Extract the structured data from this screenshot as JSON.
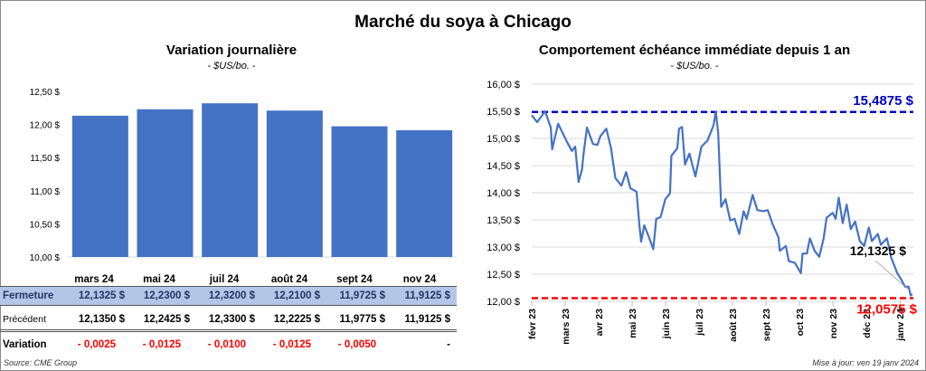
{
  "title": "Marché du soya à Chicago",
  "left": {
    "title": "Variation journalière",
    "unit": "- $US/bo. -"
  },
  "right": {
    "title": "Comportement  échéance immédiate depuis 1 an",
    "unit": "- $US/bo. -"
  },
  "table": {
    "months": [
      "mars 24",
      "mai 24",
      "juil 24",
      "août 24",
      "sept 24",
      "nov 24"
    ],
    "rows": [
      {
        "label": "Fermeture",
        "values": [
          "12,1325  $",
          "12,2300  $",
          "12,3200  $",
          "12,2100  $",
          "11,9725  $",
          "11,9125  $"
        ]
      },
      {
        "label": "Précédent",
        "values": [
          "12,1350  $",
          "12,2425  $",
          "12,3300  $",
          "12,2225  $",
          "11,9775  $",
          "11,9125  $"
        ]
      },
      {
        "label": "Variation",
        "values": [
          "- 0,0025",
          "- 0,0125",
          "- 0,0100",
          "- 0,0125",
          "- 0,0050",
          "-"
        ]
      }
    ]
  },
  "source": "Source: CME Group",
  "update": "Mise à jour: ven 19 janv 2024",
  "colors": {
    "bar": "#4472c4",
    "line": "#4472c4",
    "max": "#0000c0",
    "min": "#ff0000",
    "fermeture_bg": "#b4c6e7",
    "fermeture_text": "#1f3864",
    "neg": "#ff0000"
  },
  "chart_data": [
    {
      "type": "bar",
      "title": "Variation journalière",
      "ylabel": "$US/bo.",
      "categories": [
        "mars 24",
        "mai 24",
        "juil 24",
        "août 24",
        "sept 24",
        "nov 24"
      ],
      "values": [
        12.1325,
        12.23,
        12.32,
        12.21,
        11.9725,
        11.9125
      ],
      "ylim": [
        10,
        12.5
      ],
      "yticks": [
        "10,00 $",
        "10,50 $",
        "11,00 $",
        "11,50 $",
        "12,00 $",
        "12,50 $"
      ],
      "ytick_values": [
        10,
        10.5,
        11,
        11.5,
        12,
        12.5
      ]
    },
    {
      "type": "line",
      "title": "Comportement  échéance immédiate depuis 1 an",
      "ylim": [
        12,
        16
      ],
      "yticks": [
        "12,00 $",
        "12,50 $",
        "13,00 $",
        "13,50 $",
        "14,00 $",
        "14,50 $",
        "15,00 $",
        "15,50 $",
        "16,00 $"
      ],
      "ytick_values": [
        12,
        12.5,
        13,
        13.5,
        14,
        14.5,
        15,
        15.5,
        16
      ],
      "xticks": [
        "févr 23",
        "mars 23",
        "avr 23",
        "mai 23",
        "juin 23",
        "juil 23",
        "août 23",
        "sept 23",
        "oct 23",
        "nov 23",
        "déc 23",
        "janv 24"
      ],
      "x_months": [
        0,
        0.16,
        0.4,
        0.57,
        0.61,
        0.79,
        1.06,
        1.2,
        1.3,
        1.4,
        1.5,
        1.56,
        1.65,
        1.83,
        1.96,
        2.05,
        2.23,
        2.37,
        2.5,
        2.68,
        2.82,
        2.95,
        3.13,
        3.22,
        3.27,
        3.36,
        3.49,
        3.63,
        3.72,
        3.85,
        3.99,
        4.13,
        4.17,
        4.35,
        4.4,
        4.49,
        4.58,
        4.71,
        4.89,
        5.07,
        5.25,
        5.43,
        5.5,
        5.57,
        5.66,
        5.79,
        5.93,
        6.06,
        6.2,
        6.33,
        6.42,
        6.6,
        6.74,
        6.92,
        7.05,
        7.19,
        7.37,
        7.41,
        7.59,
        7.68,
        7.86,
        8.04,
        8.09,
        8.22,
        8.31,
        8.45,
        8.59,
        8.72,
        8.81,
        8.99,
        9.08,
        9.17,
        9.29,
        9.41,
        9.53,
        9.66,
        9.8,
        9.93,
        10.07,
        10.16,
        10.34,
        10.43,
        10.61,
        10.74,
        10.92,
        11.06,
        11.15,
        11.26,
        11.32,
        11.37
      ],
      "values": [
        15.43,
        15.3,
        15.5,
        15.2,
        14.8,
        15.27,
        14.93,
        14.77,
        14.85,
        14.2,
        14.42,
        14.77,
        15.2,
        14.9,
        14.88,
        15.04,
        15.18,
        14.82,
        14.27,
        14.13,
        14.38,
        14.08,
        14.02,
        13.38,
        13.1,
        13.4,
        13.2,
        12.96,
        13.52,
        13.55,
        13.88,
        13.99,
        14.68,
        14.82,
        15.18,
        15.21,
        14.52,
        14.72,
        14.3,
        14.85,
        14.96,
        15.24,
        15.49,
        15.1,
        13.74,
        13.88,
        13.49,
        13.52,
        13.24,
        13.66,
        13.52,
        13.96,
        13.68,
        13.66,
        13.68,
        13.43,
        13.18,
        12.93,
        13.02,
        12.74,
        12.71,
        12.52,
        12.88,
        12.88,
        13.16,
        12.93,
        12.82,
        13.16,
        13.54,
        13.63,
        13.52,
        13.91,
        13.44,
        13.78,
        13.33,
        13.47,
        13.11,
        13.02,
        13.36,
        13.11,
        13.24,
        13.04,
        13.16,
        12.8,
        12.52,
        12.38,
        12.27,
        12.27,
        12.11,
        12.13
      ],
      "max": {
        "value": 15.4875,
        "label": "15,4875 $"
      },
      "min": {
        "value": 12.0575,
        "label": "12,0575 $"
      },
      "last": {
        "value": 12.1325,
        "label": "12,1325 $"
      }
    }
  ]
}
